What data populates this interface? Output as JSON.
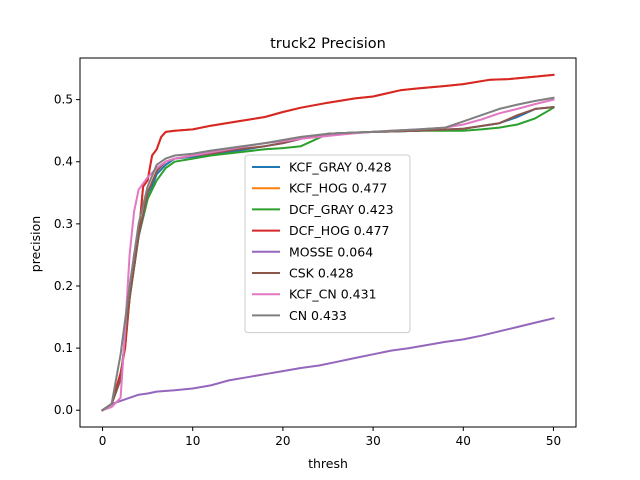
{
  "chart_data": {
    "type": "line",
    "title": "truck2 Precision",
    "xlabel": "thresh",
    "ylabel": "precision",
    "xlim": [
      -2.5,
      52.5
    ],
    "ylim": [
      -0.027,
      0.567
    ],
    "xticks": [
      0,
      10,
      20,
      30,
      40,
      50
    ],
    "xtick_labels": [
      "0",
      "10",
      "20",
      "30",
      "40",
      "50"
    ],
    "yticks": [
      0.0,
      0.1,
      0.2,
      0.3,
      0.4,
      0.5
    ],
    "ytick_labels": [
      "0.0",
      "0.1",
      "0.2",
      "0.3",
      "0.4",
      "0.5"
    ],
    "grid": false,
    "legend": "center",
    "series": [
      {
        "name": "KCF_GRAY 0.428",
        "color": "#1f77b4",
        "x": [
          0,
          1,
          2,
          3,
          4,
          5,
          6,
          7,
          8,
          10,
          12,
          15,
          18,
          20,
          22,
          25,
          30,
          35,
          40,
          44,
          46,
          48,
          50
        ],
        "y": [
          0.0,
          0.01,
          0.05,
          0.18,
          0.28,
          0.34,
          0.38,
          0.395,
          0.405,
          0.408,
          0.412,
          0.418,
          0.425,
          0.43,
          0.437,
          0.445,
          0.448,
          0.45,
          0.453,
          0.462,
          0.472,
          0.485,
          0.488
        ]
      },
      {
        "name": "KCF_HOG 0.477",
        "color": "#ff7f0e",
        "x": [
          0,
          1,
          2,
          2.5,
          3,
          3.5,
          4,
          4.5,
          5,
          5.5,
          6,
          6.5,
          7,
          8,
          10,
          12,
          15,
          18,
          20,
          22,
          25,
          28,
          30,
          33,
          35,
          38,
          40,
          43,
          45,
          48,
          50
        ],
        "y": [
          0.0,
          0.01,
          0.06,
          0.1,
          0.18,
          0.25,
          0.28,
          0.36,
          0.37,
          0.41,
          0.42,
          0.44,
          0.448,
          0.45,
          0.452,
          0.458,
          0.465,
          0.472,
          0.48,
          0.487,
          0.495,
          0.502,
          0.505,
          0.515,
          0.518,
          0.522,
          0.525,
          0.532,
          0.533,
          0.537,
          0.54
        ]
      },
      {
        "name": "DCF_GRAY 0.423",
        "color": "#2ca02c",
        "x": [
          0,
          1,
          2,
          3,
          4,
          5,
          6,
          7,
          8,
          10,
          12,
          15,
          18,
          20,
          22,
          25,
          30,
          35,
          40,
          42,
          44,
          46,
          48,
          50
        ],
        "y": [
          0.0,
          0.01,
          0.05,
          0.18,
          0.28,
          0.34,
          0.37,
          0.39,
          0.4,
          0.405,
          0.41,
          0.415,
          0.42,
          0.422,
          0.425,
          0.445,
          0.448,
          0.45,
          0.45,
          0.452,
          0.455,
          0.46,
          0.47,
          0.487
        ]
      },
      {
        "name": "DCF_HOG 0.477",
        "color": "#d62728",
        "x": [
          0,
          1,
          2,
          2.5,
          3,
          3.5,
          4,
          4.5,
          5,
          5.5,
          6,
          6.5,
          7,
          8,
          10,
          12,
          15,
          18,
          20,
          22,
          25,
          28,
          30,
          33,
          35,
          38,
          40,
          43,
          45,
          48,
          50
        ],
        "y": [
          0.0,
          0.01,
          0.06,
          0.1,
          0.18,
          0.25,
          0.28,
          0.36,
          0.37,
          0.41,
          0.42,
          0.44,
          0.448,
          0.45,
          0.452,
          0.458,
          0.465,
          0.472,
          0.48,
          0.487,
          0.495,
          0.502,
          0.505,
          0.515,
          0.518,
          0.522,
          0.525,
          0.532,
          0.533,
          0.537,
          0.54
        ]
      },
      {
        "name": "MOSSE 0.064",
        "color": "#9467bd",
        "x": [
          0,
          1,
          2,
          3,
          4,
          5,
          6,
          8,
          10,
          12,
          14,
          16,
          18,
          20,
          22,
          24,
          26,
          28,
          30,
          32,
          34,
          36,
          38,
          40,
          42,
          44,
          46,
          48,
          50
        ],
        "y": [
          0.0,
          0.01,
          0.015,
          0.02,
          0.025,
          0.027,
          0.03,
          0.032,
          0.035,
          0.04,
          0.048,
          0.053,
          0.058,
          0.063,
          0.068,
          0.072,
          0.078,
          0.084,
          0.09,
          0.096,
          0.1,
          0.105,
          0.11,
          0.114,
          0.12,
          0.127,
          0.134,
          0.141,
          0.148
        ]
      },
      {
        "name": "CSK 0.428",
        "color": "#8c564b",
        "x": [
          0,
          1,
          2,
          3,
          4,
          5,
          6,
          7,
          8,
          10,
          12,
          15,
          18,
          20,
          22,
          25,
          30,
          35,
          40,
          44,
          46,
          48,
          50
        ],
        "y": [
          0.0,
          0.01,
          0.05,
          0.18,
          0.28,
          0.35,
          0.385,
          0.4,
          0.405,
          0.41,
          0.413,
          0.42,
          0.425,
          0.43,
          0.437,
          0.445,
          0.448,
          0.45,
          0.453,
          0.462,
          0.475,
          0.485,
          0.488
        ]
      },
      {
        "name": "KCF_CN 0.431",
        "color": "#e377c2",
        "x": [
          0,
          1,
          2,
          2.5,
          3,
          3.5,
          4,
          5,
          6,
          7,
          8,
          10,
          12,
          14,
          16,
          18,
          20,
          22,
          24,
          26,
          28,
          30,
          32,
          35,
          38,
          40,
          42,
          44,
          46,
          48,
          50
        ],
        "y": [
          0.0,
          0.005,
          0.02,
          0.13,
          0.25,
          0.32,
          0.355,
          0.375,
          0.39,
          0.4,
          0.405,
          0.41,
          0.415,
          0.42,
          0.425,
          0.43,
          0.433,
          0.437,
          0.44,
          0.443,
          0.446,
          0.448,
          0.45,
          0.452,
          0.455,
          0.46,
          0.468,
          0.478,
          0.485,
          0.493,
          0.5
        ]
      },
      {
        "name": "CN 0.433",
        "color": "#7f7f7f",
        "x": [
          0,
          1,
          2,
          3,
          4,
          5,
          6,
          7,
          8,
          10,
          12,
          14,
          16,
          18,
          20,
          22,
          25,
          28,
          30,
          32,
          35,
          38,
          40,
          42,
          44,
          46,
          48,
          50
        ],
        "y": [
          0.0,
          0.01,
          0.09,
          0.2,
          0.3,
          0.36,
          0.395,
          0.405,
          0.41,
          0.413,
          0.418,
          0.422,
          0.426,
          0.43,
          0.435,
          0.44,
          0.445,
          0.447,
          0.448,
          0.45,
          0.452,
          0.455,
          0.465,
          0.475,
          0.485,
          0.492,
          0.498,
          0.503
        ]
      }
    ]
  }
}
